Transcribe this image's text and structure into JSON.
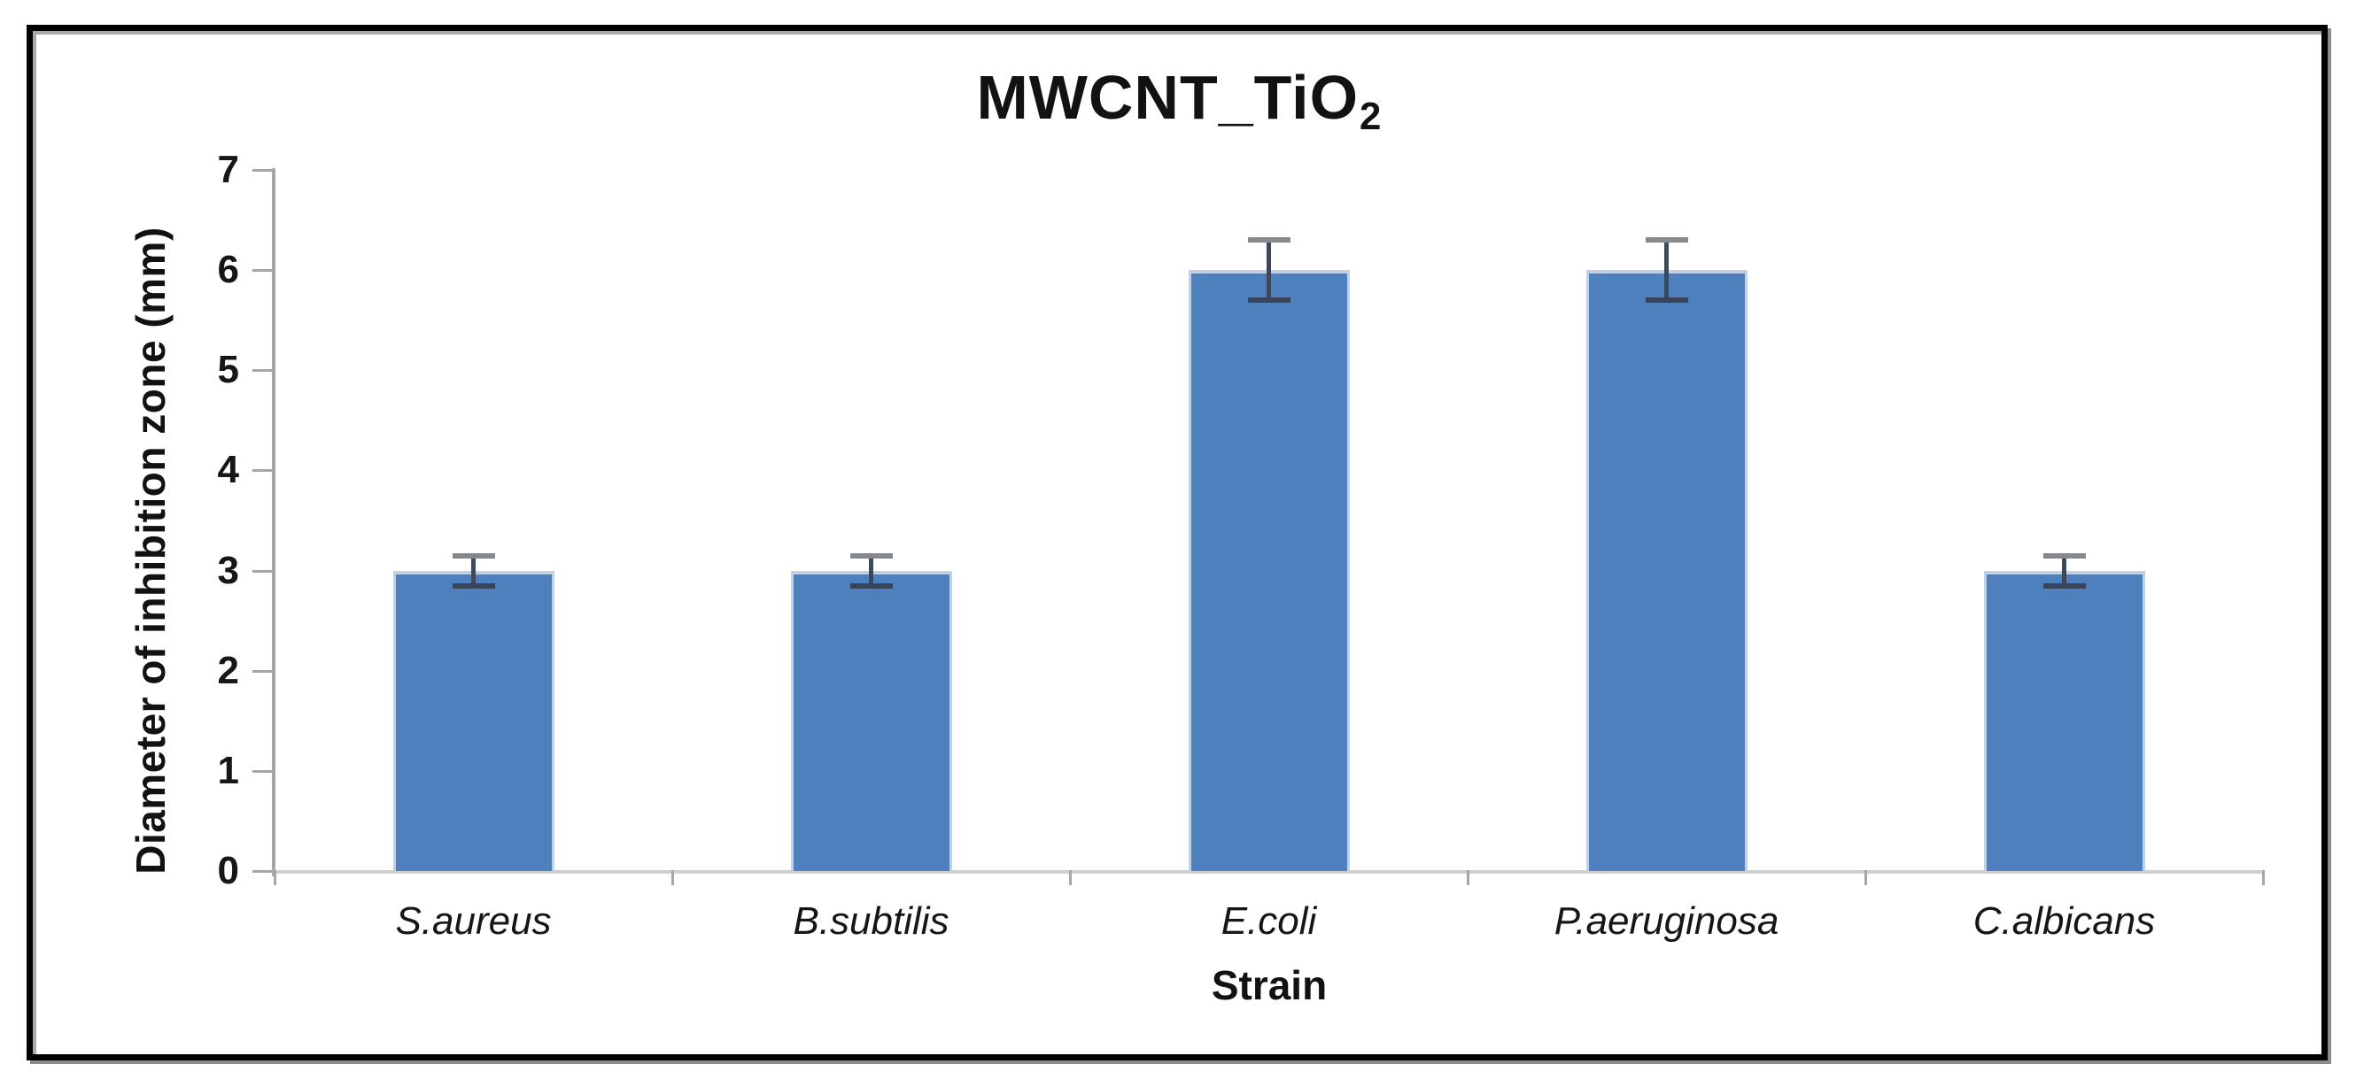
{
  "figure": {
    "title_main": "MWCNT_TiO",
    "title_subscript": "2",
    "x_axis_title": "Strain",
    "y_axis_title": "Diameter of inhibition zone (mm)"
  },
  "chart_data": {
    "type": "bar",
    "title": "MWCNT_TiO2",
    "xlabel": "Strain",
    "ylabel": "Diameter of inhibition zone (mm)",
    "categories": [
      "S.aureus",
      "B.subtilis",
      "E.coli",
      "P.aeruginosa",
      "C.albicans"
    ],
    "values": [
      3,
      3,
      6,
      6,
      3
    ],
    "errors": [
      0.15,
      0.15,
      0.3,
      0.3,
      0.15
    ],
    "ylim": [
      0,
      7
    ],
    "yticks": [
      0,
      1,
      2,
      3,
      4,
      5,
      6,
      7
    ],
    "grid": false,
    "legend": "none",
    "category_label_style": "italic"
  },
  "colors": {
    "bar_fill": "#4D80BD",
    "bar_edge": "#BFD0E9",
    "error_line": "#3E4957",
    "error_cap_top": "#85898D",
    "error_cap_bottom": "#39445A",
    "axis_line": "#A6A6A6",
    "tick_line": "#A6A6A6",
    "baseline": "#CFCFCF",
    "frame_border": "#000000",
    "text": "#161616"
  }
}
